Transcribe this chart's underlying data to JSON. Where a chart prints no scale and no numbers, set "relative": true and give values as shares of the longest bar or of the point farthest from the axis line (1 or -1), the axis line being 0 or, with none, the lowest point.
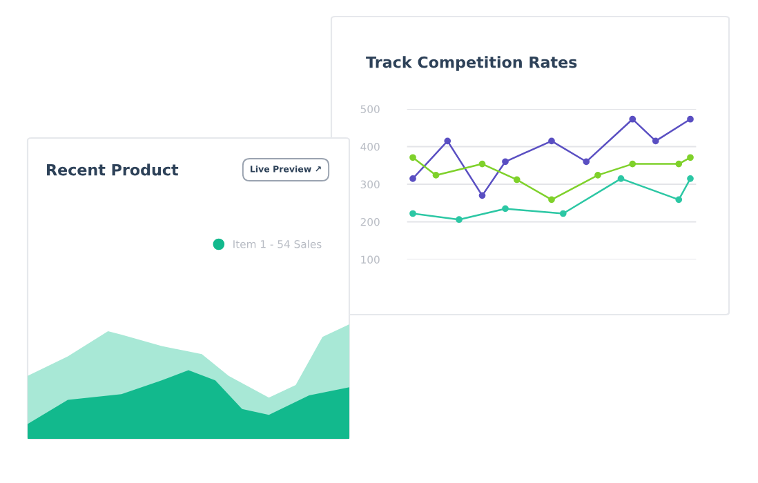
{
  "chart_data": [
    {
      "type": "line",
      "title": "Track Competition Rates",
      "categories": [
        null,
        null,
        null,
        null,
        null,
        null,
        null,
        null,
        null,
        null,
        null,
        null,
        null,
        null,
        null,
        null,
        null,
        null,
        null,
        null,
        null,
        null,
        null,
        null,
        null
      ],
      "ylim": [
        100,
        500
      ],
      "yticks": [
        100,
        200,
        300,
        400,
        500
      ],
      "grid": "y",
      "tick_labels": "y",
      "marker": "circle",
      "line_style": "solid",
      "series": [
        {
          "color": "#5a4fc2",
          "values": [
            315,
            null,
            null,
            415,
            null,
            null,
            270,
            null,
            360,
            null,
            null,
            null,
            415,
            null,
            null,
            360,
            null,
            null,
            null,
            473,
            null,
            415,
            null,
            null,
            473
          ]
        },
        {
          "color": "#7fd12b",
          "values": [
            371,
            null,
            324,
            null,
            null,
            null,
            354,
            null,
            null,
            312,
            null,
            null,
            259,
            null,
            null,
            null,
            324,
            null,
            null,
            354,
            null,
            null,
            null,
            354,
            371
          ]
        },
        {
          "color": "#2cc7a4",
          "values": [
            222,
            null,
            null,
            null,
            206,
            null,
            null,
            null,
            235,
            null,
            null,
            null,
            null,
            222,
            null,
            null,
            null,
            null,
            315,
            null,
            null,
            null,
            null,
            259,
            315
          ]
        }
      ]
    },
    {
      "type": "area",
      "title": "Recent Product",
      "relative": true,
      "categories": [
        null,
        null,
        null,
        null,
        null,
        null,
        null,
        null,
        null,
        null,
        null,
        null,
        null,
        null,
        null,
        null,
        null,
        null,
        null,
        null,
        null,
        null,
        null,
        null,
        null
      ],
      "tick_labels": false,
      "legend": "top right",
      "annotations": [
        "Live Preview ↗"
      ],
      "series": [
        {
          "color": "#a8e8d6",
          "values": [
            0.55,
            null,
            null,
            0.72,
            null,
            null,
            0.94,
            0.91,
            null,
            null,
            0.81,
            null,
            null,
            0.74,
            null,
            0.55,
            null,
            null,
            0.36,
            null,
            0.47,
            null,
            0.89,
            null,
            1.0
          ]
        },
        {
          "name": "Item 1 - 54 Sales",
          "color": "#12b98d",
          "values": [
            0.13,
            null,
            null,
            0.34,
            null,
            null,
            null,
            0.39,
            null,
            null,
            0.51,
            null,
            0.6,
            null,
            0.51,
            null,
            0.26,
            null,
            0.21,
            null,
            null,
            0.38,
            null,
            null,
            0.45
          ]
        }
      ]
    }
  ]
}
